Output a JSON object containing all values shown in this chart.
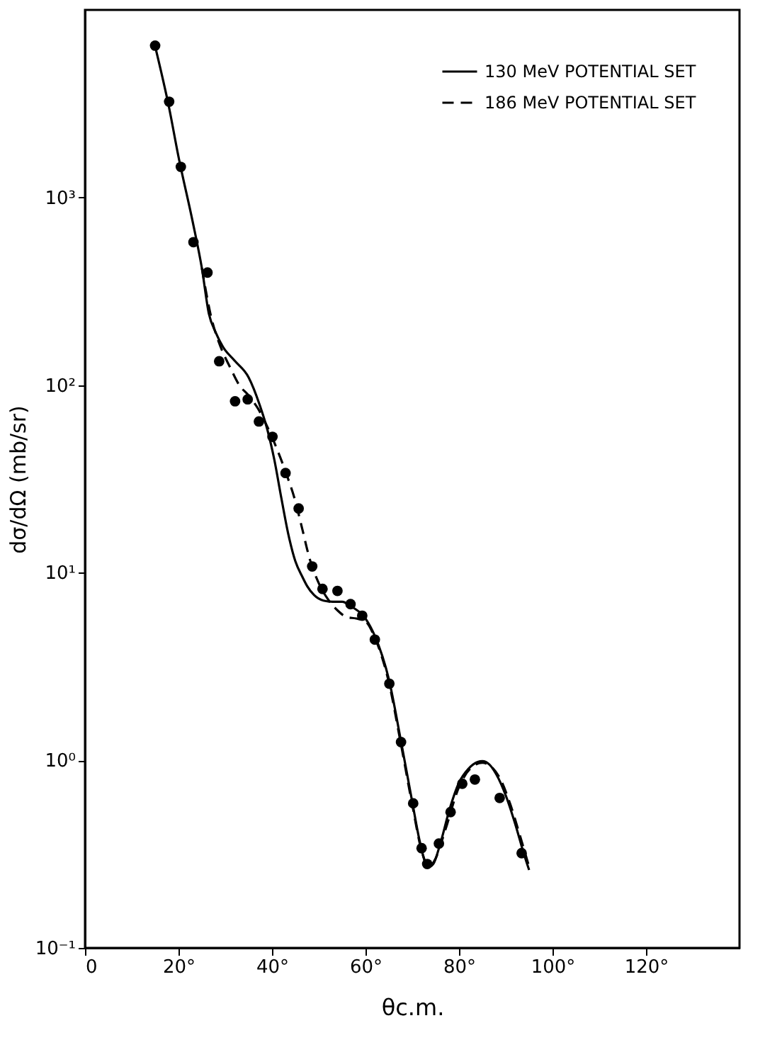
{
  "chart_data": {
    "type": "line",
    "xlabel": "θc.m.",
    "ylabel": "dσ/dΩ (mb/sr)",
    "log": "y",
    "xlim": [
      0,
      140
    ],
    "ylim": [
      0.1,
      10000
    ],
    "xticks": [
      0,
      {
        "value": 20,
        "label": "20°"
      },
      {
        "value": 40,
        "label": "40°"
      },
      {
        "value": 60,
        "label": "60°"
      },
      {
        "value": 80,
        "label": "80°"
      },
      {
        "value": 100,
        "label": "100°"
      },
      {
        "value": 120,
        "label": "120°"
      }
    ],
    "yticks": [
      {
        "value": 0.1,
        "label": "10⁻¹"
      },
      {
        "value": 1,
        "label": "10⁰"
      },
      {
        "value": 10,
        "label": "10¹"
      },
      {
        "value": 100,
        "label": "10²"
      },
      {
        "value": 1000,
        "label": "10³"
      }
    ],
    "grid": false,
    "legend": "top right",
    "series": [
      {
        "name": "130 MeV POTENTIAL SET",
        "line_style": "solid",
        "color": "#000000",
        "x": [
          15,
          18,
          20,
          23,
          25,
          26.5,
          28,
          29.5,
          32,
          35,
          37.4,
          39,
          40.5,
          42,
          43.5,
          45,
          46.5,
          47.5,
          49,
          51,
          53,
          55,
          57,
          60,
          62,
          65,
          67.5,
          70,
          71.5,
          72.5,
          73.5,
          74.5,
          76,
          78,
          80,
          82,
          84,
          85,
          86.5,
          88,
          90,
          92,
          94,
          95
        ],
        "values": [
          6400,
          3000,
          1650,
          750,
          420,
          240,
          190,
          160,
          135,
          110,
          78,
          58,
          40,
          25,
          16,
          11.5,
          9.5,
          8.5,
          7.6,
          7.1,
          7.0,
          7.0,
          6.6,
          5.7,
          4.6,
          2.7,
          1.3,
          0.6,
          0.38,
          0.3,
          0.27,
          0.28,
          0.36,
          0.55,
          0.76,
          0.9,
          0.98,
          0.99,
          0.95,
          0.84,
          0.65,
          0.46,
          0.31,
          0.26
        ]
      },
      {
        "name": "186 MeV POTENTIAL SET",
        "line_style": "dashed",
        "color": "#000000",
        "x": [
          25,
          27,
          29,
          31,
          33,
          35,
          37,
          39,
          41,
          43,
          45,
          46.5,
          48,
          50,
          52,
          54,
          56,
          58,
          60,
          62,
          65,
          67.5,
          70,
          72,
          73.5,
          75,
          77,
          80,
          83,
          85,
          87,
          89,
          91,
          93,
          95
        ],
        "values": [
          420,
          230,
          160,
          125,
          100,
          88,
          75,
          60,
          46,
          34,
          24,
          17,
          12,
          8.8,
          7.2,
          6.3,
          5.8,
          5.7,
          5.5,
          4.5,
          2.6,
          1.25,
          0.58,
          0.33,
          0.27,
          0.3,
          0.42,
          0.72,
          0.93,
          0.97,
          0.92,
          0.78,
          0.58,
          0.4,
          0.27
        ]
      },
      {
        "type": "scatter",
        "marker": "circle",
        "color": "#000000",
        "x": [
          15.0,
          18.0,
          20.5,
          23.2,
          26.2,
          28.7,
          32.1,
          34.8,
          37.2,
          40.1,
          42.9,
          45.7,
          48.6,
          50.8,
          54.0,
          56.8,
          59.3,
          62.0,
          65.1,
          67.6,
          70.2,
          72.0,
          73.2,
          75.7,
          78.2,
          80.7,
          83.4,
          88.7,
          93.4
        ],
        "values": [
          6450,
          3240,
          1456,
          578,
          398,
          134,
          82,
          84,
          64,
          53,
          34,
          22,
          10.8,
          8.2,
          8.0,
          6.8,
          5.9,
          4.4,
          2.56,
          1.25,
          0.59,
          0.34,
          0.28,
          0.36,
          0.53,
          0.75,
          0.79,
          0.63,
          0.32
        ]
      }
    ]
  }
}
